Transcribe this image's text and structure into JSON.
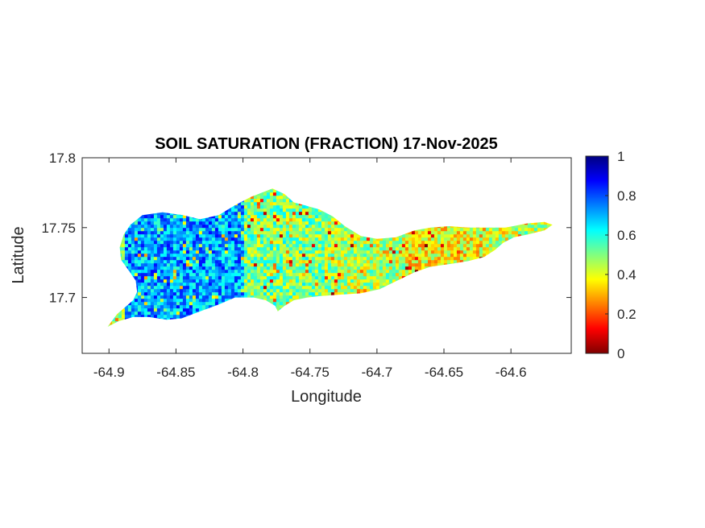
{
  "chart_data": {
    "type": "heatmap",
    "title": "SOIL SATURATION (FRACTION) 17-Nov-2025",
    "xlabel": "Longitude",
    "ylabel": "Latitude",
    "xlim": [
      -64.92,
      -64.555
    ],
    "ylim": [
      17.66,
      17.8
    ],
    "xticks": [
      -64.9,
      -64.85,
      -64.8,
      -64.75,
      -64.7,
      -64.65,
      -64.6
    ],
    "xtick_labels": [
      "-64.9",
      "-64.85",
      "-64.8",
      "-64.75",
      "-64.7",
      "-64.65",
      "-64.6"
    ],
    "yticks": [
      17.7,
      17.75,
      17.8
    ],
    "ytick_labels": [
      "17.7",
      "17.75",
      "17.8"
    ],
    "grid": false,
    "colormap": "jet",
    "colorbar": {
      "range": [
        0,
        1
      ],
      "ticks": [
        0,
        0.2,
        0.4,
        0.6,
        0.8,
        1
      ],
      "tick_labels": [
        "0",
        "0.2",
        "0.4",
        "0.6",
        "0.8",
        "1"
      ],
      "colors": [
        "#800000",
        "#ff0000",
        "#ff8000",
        "#ffff00",
        "#80ff80",
        "#00ffff",
        "#0080ff",
        "#0000ff",
        "#000080"
      ]
    },
    "regions": [
      {
        "lon_min": -64.89,
        "lon_max": -64.8,
        "lat_min": 17.69,
        "lat_max": 17.76,
        "mean_saturation": 0.72
      },
      {
        "lon_min": -64.8,
        "lon_max": -64.74,
        "lat_min": 17.7,
        "lat_max": 17.78,
        "mean_saturation": 0.5
      },
      {
        "lon_min": -64.74,
        "lon_max": -64.68,
        "lat_min": 17.7,
        "lat_max": 17.77,
        "mean_saturation": 0.45
      },
      {
        "lon_min": -64.68,
        "lon_max": -64.62,
        "lat_min": 17.72,
        "lat_max": 17.76,
        "mean_saturation": 0.38
      },
      {
        "lon_min": -64.62,
        "lon_max": -64.57,
        "lat_min": 17.73,
        "lat_max": 17.755,
        "mean_saturation": 0.45
      }
    ],
    "outline": [
      [
        -64.901,
        17.679
      ],
      [
        -64.894,
        17.688
      ],
      [
        -64.888,
        17.693
      ],
      [
        -64.882,
        17.698
      ],
      [
        -64.879,
        17.704
      ],
      [
        -64.88,
        17.712
      ],
      [
        -64.885,
        17.719
      ],
      [
        -64.891,
        17.727
      ],
      [
        -64.892,
        17.736
      ],
      [
        -64.889,
        17.745
      ],
      [
        -64.884,
        17.752
      ],
      [
        -64.875,
        17.759
      ],
      [
        -64.86,
        17.761
      ],
      [
        -64.845,
        17.759
      ],
      [
        -64.832,
        17.756
      ],
      [
        -64.818,
        17.759
      ],
      [
        -64.806,
        17.766
      ],
      [
        -64.794,
        17.772
      ],
      [
        -64.778,
        17.778
      ],
      [
        -64.769,
        17.774
      ],
      [
        -64.762,
        17.768
      ],
      [
        -64.754,
        17.766
      ],
      [
        -64.743,
        17.763
      ],
      [
        -64.733,
        17.758
      ],
      [
        -64.724,
        17.751
      ],
      [
        -64.712,
        17.744
      ],
      [
        -64.7,
        17.742
      ],
      [
        -64.686,
        17.743
      ],
      [
        -64.672,
        17.748
      ],
      [
        -64.66,
        17.75
      ],
      [
        -64.646,
        17.751
      ],
      [
        -64.632,
        17.75
      ],
      [
        -64.618,
        17.75
      ],
      [
        -64.604,
        17.75
      ],
      [
        -64.588,
        17.753
      ],
      [
        -64.575,
        17.754
      ],
      [
        -64.569,
        17.752
      ],
      [
        -64.575,
        17.748
      ],
      [
        -64.588,
        17.745
      ],
      [
        -64.598,
        17.743
      ],
      [
        -64.606,
        17.739
      ],
      [
        -64.612,
        17.734
      ],
      [
        -64.62,
        17.729
      ],
      [
        -64.632,
        17.726
      ],
      [
        -64.645,
        17.724
      ],
      [
        -64.66,
        17.722
      ],
      [
        -64.672,
        17.718
      ],
      [
        -64.685,
        17.712
      ],
      [
        -64.698,
        17.706
      ],
      [
        -64.712,
        17.703
      ],
      [
        -64.728,
        17.702
      ],
      [
        -64.742,
        17.701
      ],
      [
        -64.752,
        17.7
      ],
      [
        -64.762,
        17.698
      ],
      [
        -64.769,
        17.694
      ],
      [
        -64.774,
        17.69
      ],
      [
        -64.776,
        17.694
      ],
      [
        -64.783,
        17.698
      ],
      [
        -64.792,
        17.7
      ],
      [
        -64.806,
        17.7
      ],
      [
        -64.818,
        17.695
      ],
      [
        -64.832,
        17.69
      ],
      [
        -64.846,
        17.685
      ],
      [
        -64.857,
        17.684
      ],
      [
        -64.87,
        17.686
      ],
      [
        -64.882,
        17.686
      ],
      [
        -64.893,
        17.683
      ],
      [
        -64.901,
        17.679
      ]
    ]
  }
}
